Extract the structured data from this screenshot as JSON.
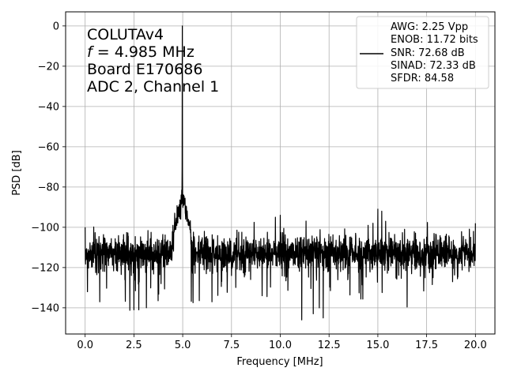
{
  "chart_data": {
    "type": "line",
    "xlabel": "Frequency [MHz]",
    "ylabel": "PSD [dB]",
    "xlim": [
      -1,
      21
    ],
    "ylim": [
      -153,
      7
    ],
    "xticks": [
      0.0,
      2.5,
      5.0,
      7.5,
      10.0,
      12.5,
      15.0,
      17.5,
      20.0
    ],
    "xtick_labels": [
      "0.0",
      "2.5",
      "5.0",
      "7.5",
      "10.0",
      "12.5",
      "15.0",
      "17.5",
      "20.0"
    ],
    "yticks": [
      0,
      -20,
      -40,
      -60,
      -80,
      -100,
      -120,
      -140
    ],
    "ytick_labels": [
      "0",
      "−20",
      "−40",
      "−60",
      "−80",
      "−100",
      "−120",
      "−140"
    ],
    "grid": true,
    "line_color": "#000000",
    "annotation_lines": [
      "COLUTAv4",
      "f = 4.985 MHz",
      "Board E170686",
      "ADC 2, Channel 1"
    ],
    "annotation_f_symbol": "f",
    "annotation_f_rest": " = 4.985 MHz",
    "legend_position": "top-right",
    "legend_lines": [
      "AWG: 2.25 Vpp",
      "ENOB: 11.72 bits",
      "SNR: 72.68 dB",
      "SINAD: 72.33 dB",
      "SFDR: 84.58"
    ],
    "x_range": [
      0,
      20
    ],
    "noise_floor_center": -113,
    "fundamental": {
      "x": 4.985,
      "y": 0
    },
    "notable_points": [
      {
        "x": 0.0,
        "y": -100
      },
      {
        "x": 0.12,
        "y": -132
      },
      {
        "x": 0.75,
        "y": -137
      },
      {
        "x": 2.5,
        "y": -141
      },
      {
        "x": 2.75,
        "y": -141
      },
      {
        "x": 4.5,
        "y": -99
      },
      {
        "x": 4.9,
        "y": -96
      },
      {
        "x": 5.05,
        "y": -84
      },
      {
        "x": 5.15,
        "y": -96
      },
      {
        "x": 6.5,
        "y": -137
      },
      {
        "x": 9.75,
        "y": -95
      },
      {
        "x": 10.0,
        "y": -94
      },
      {
        "x": 11.1,
        "y": -146
      },
      {
        "x": 12.0,
        "y": -140
      },
      {
        "x": 12.2,
        "y": -145
      },
      {
        "x": 14.5,
        "y": -99
      },
      {
        "x": 14.75,
        "y": -98
      },
      {
        "x": 15.0,
        "y": -91
      },
      {
        "x": 15.2,
        "y": -92
      },
      {
        "x": 15.4,
        "y": -97
      },
      {
        "x": 19.9,
        "y": -102
      },
      {
        "x": 20.0,
        "y": -98
      }
    ]
  }
}
